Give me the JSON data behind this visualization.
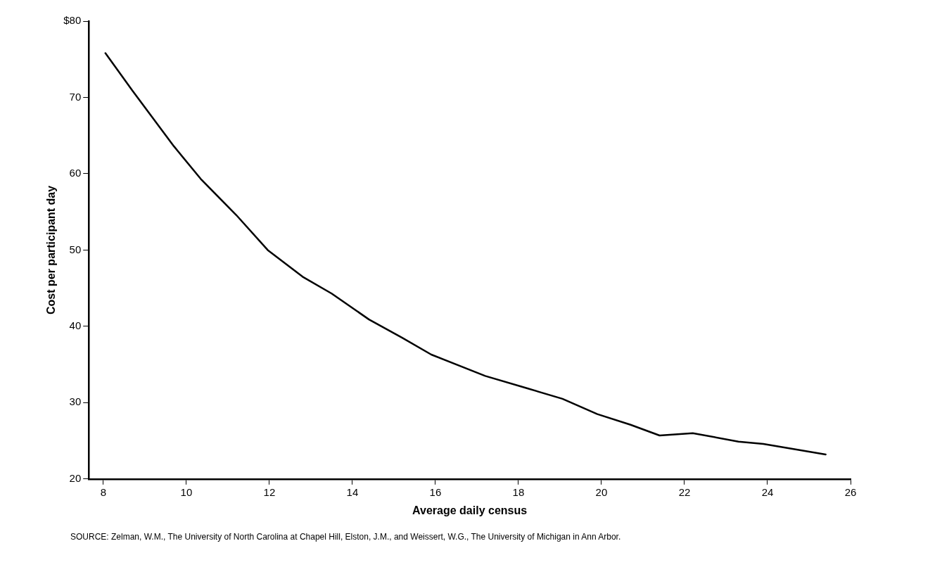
{
  "chart_data": {
    "type": "line",
    "xlabel": "Average daily census",
    "ylabel": "Cost per participant day",
    "annotations": [
      "SOURCE:  Zelman, W.M., The University of North Carolina at Chapel Hill, Elston, J.M., and Weissert, W.G., The University of Michigan in Ann Arbor."
    ],
    "series": [
      {
        "color": "#000000",
        "x": [
          8.05,
          8.7,
          9.7,
          10.35,
          11.2,
          11.96,
          12.8,
          13.5,
          14.4,
          15.2,
          15.9,
          17.2,
          18.2,
          19.06,
          19.9,
          20.7,
          21.4,
          22.2,
          23.3,
          23.9,
          25.4
        ],
        "values": [
          75.8,
          70.9,
          63.6,
          59.3,
          54.6,
          50.0,
          46.5,
          44.3,
          40.9,
          38.5,
          36.3,
          33.5,
          31.9,
          30.5,
          28.5,
          27.1,
          25.7,
          26.0,
          24.9,
          24.6,
          23.2
        ]
      }
    ],
    "xlim": [
      7.65,
      26
    ],
    "ylim": [
      20,
      80
    ],
    "xticks": [
      8,
      10,
      12,
      14,
      16,
      18,
      20,
      22,
      24,
      26
    ],
    "yticks": [
      20,
      30,
      40,
      50,
      60,
      70,
      {
        "value": 80,
        "label": "$80"
      }
    ],
    "grid": false,
    "legend": false,
    "marker": "none",
    "line_style": "solid"
  }
}
